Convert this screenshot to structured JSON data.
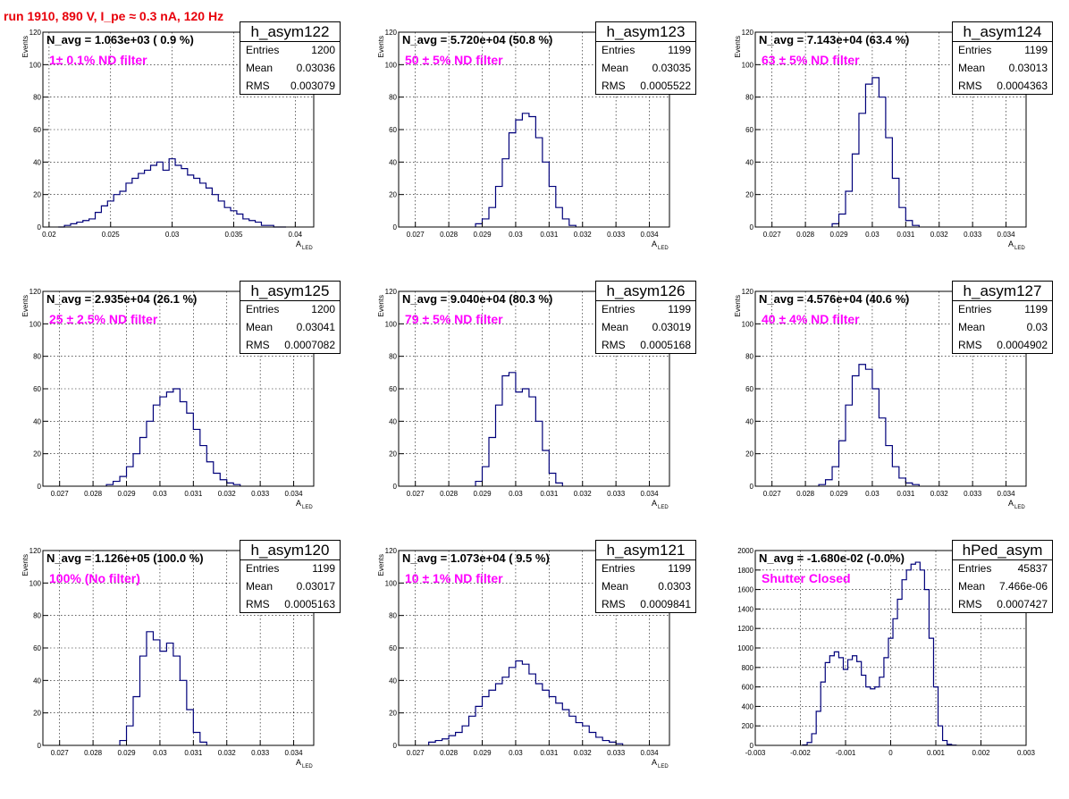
{
  "page_title": "run 1910,   890 V, I_pe ≈ 0.3 nA, 120 Hz",
  "stat_labels": {
    "entries": "Entries",
    "mean": "Mean",
    "rms": "RMS"
  },
  "colors": {
    "histogram": "#00007a",
    "title": "#e8000b",
    "filter_label": "#ff00ff",
    "grid": "#000000"
  },
  "chart_data": [
    {
      "type": "bar",
      "name": "h_asym122",
      "navg": "N_avg = 1.063e+03 ( 0.9 %)",
      "label": "1± 0.1% ND filter",
      "entries": "1200",
      "mean": "0.03036",
      "rms": "0.003079",
      "xlabel": "A",
      "xlabel_sub": "LED",
      "ylabel": "Events",
      "xlim": [
        0.0195,
        0.0415
      ],
      "ylim": [
        0,
        120
      ],
      "xticks": [
        0.02,
        0.025,
        0.03,
        0.035,
        0.04
      ],
      "xtick_labels": [
        "0.02",
        "0.025",
        "0.03",
        "0.035",
        "0.04"
      ],
      "yticks": [
        0,
        20,
        40,
        60,
        80,
        100,
        120
      ],
      "ytick_labels": [
        "0",
        "20",
        "40",
        "60",
        "80",
        "100",
        "120"
      ],
      "bins_x": [
        0.021,
        0.0215,
        0.022,
        0.0225,
        0.023,
        0.0235,
        0.024,
        0.0245,
        0.025,
        0.0255,
        0.026,
        0.0265,
        0.027,
        0.0275,
        0.028,
        0.0285,
        0.029,
        0.0295,
        0.03,
        0.0305,
        0.031,
        0.0315,
        0.032,
        0.0325,
        0.033,
        0.0335,
        0.034,
        0.0345,
        0.035,
        0.0355,
        0.036,
        0.0365,
        0.037,
        0.0375,
        0.038,
        0.0385,
        0.039
      ],
      "values": [
        0,
        1,
        2,
        3,
        4,
        5,
        9,
        13,
        16,
        20,
        22,
        27,
        30,
        33,
        35,
        38,
        40,
        35,
        42,
        38,
        36,
        32,
        30,
        27,
        24,
        20,
        16,
        12,
        10,
        8,
        5,
        4,
        3,
        1,
        1,
        0,
        0
      ]
    },
    {
      "type": "bar",
      "name": "h_asym123",
      "navg": "N_avg = 5.720e+04 (50.8 %)",
      "label": "50 ± 5% ND filter",
      "entries": "1199",
      "mean": "0.03035",
      "rms": "0.0005522",
      "xlabel": "A",
      "xlabel_sub": "LED",
      "ylabel": "Events",
      "xlim": [
        0.0265,
        0.0346
      ],
      "ylim": [
        0,
        120
      ],
      "xticks": [
        0.027,
        0.028,
        0.029,
        0.03,
        0.031,
        0.032,
        0.033,
        0.034
      ],
      "xtick_labels": [
        "0.027",
        "0.028",
        "0.029",
        "0.03",
        "0.031",
        "0.032",
        "0.033",
        "0.034"
      ],
      "yticks": [
        0,
        20,
        40,
        60,
        80,
        100,
        120
      ],
      "ytick_labels": [
        "0",
        "20",
        "40",
        "60",
        "80",
        "100",
        "120"
      ],
      "bins_x": [
        0.0289,
        0.0291,
        0.0293,
        0.0295,
        0.0297,
        0.0299,
        0.0301,
        0.0303,
        0.0305,
        0.0307,
        0.0309,
        0.0311,
        0.0313,
        0.0315,
        0.0317
      ],
      "values": [
        2,
        5,
        12,
        25,
        42,
        58,
        66,
        70,
        68,
        55,
        40,
        25,
        12,
        5,
        1
      ]
    },
    {
      "type": "bar",
      "name": "h_asym124",
      "navg": "N_avg = 7.143e+04 (63.4 %)",
      "label": "63 ± 5% ND filter",
      "entries": "1199",
      "mean": "0.03013",
      "rms": "0.0004363",
      "xlabel": "A",
      "xlabel_sub": "LED",
      "ylabel": "Events",
      "xlim": [
        0.0265,
        0.0346
      ],
      "ylim": [
        0,
        120
      ],
      "xticks": [
        0.027,
        0.028,
        0.029,
        0.03,
        0.031,
        0.032,
        0.033,
        0.034
      ],
      "xtick_labels": [
        "0.027",
        "0.028",
        "0.029",
        "0.03",
        "0.031",
        "0.032",
        "0.033",
        "0.034"
      ],
      "yticks": [
        0,
        20,
        40,
        60,
        80,
        100,
        120
      ],
      "ytick_labels": [
        "0",
        "20",
        "40",
        "60",
        "80",
        "100",
        "120"
      ],
      "bins_x": [
        0.0289,
        0.0291,
        0.0293,
        0.0295,
        0.0297,
        0.0299,
        0.0301,
        0.0303,
        0.0305,
        0.0307,
        0.0309,
        0.0311,
        0.0313
      ],
      "values": [
        2,
        8,
        22,
        45,
        70,
        88,
        92,
        80,
        55,
        30,
        12,
        4,
        1
      ]
    },
    {
      "type": "bar",
      "name": "h_asym125",
      "navg": "N_avg = 2.935e+04 (26.1 %)",
      "label": "25 ± 2.5% ND filter",
      "entries": "1200",
      "mean": "0.03041",
      "rms": "0.0007082",
      "xlabel": "A",
      "xlabel_sub": "LED",
      "ylabel": "Events",
      "xlim": [
        0.0265,
        0.0346
      ],
      "ylim": [
        0,
        120
      ],
      "xticks": [
        0.027,
        0.028,
        0.029,
        0.03,
        0.031,
        0.032,
        0.033,
        0.034
      ],
      "xtick_labels": [
        "0.027",
        "0.028",
        "0.029",
        "0.03",
        "0.031",
        "0.032",
        "0.033",
        "0.034"
      ],
      "yticks": [
        0,
        20,
        40,
        60,
        80,
        100,
        120
      ],
      "ytick_labels": [
        "0",
        "20",
        "40",
        "60",
        "80",
        "100",
        "120"
      ],
      "bins_x": [
        0.0285,
        0.0287,
        0.0289,
        0.0291,
        0.0293,
        0.0295,
        0.0297,
        0.0299,
        0.0301,
        0.0303,
        0.0305,
        0.0307,
        0.0309,
        0.0311,
        0.0313,
        0.0315,
        0.0317,
        0.0319,
        0.0321,
        0.0323
      ],
      "values": [
        1,
        3,
        6,
        12,
        20,
        30,
        40,
        50,
        55,
        58,
        60,
        52,
        45,
        35,
        25,
        15,
        8,
        4,
        2,
        1
      ]
    },
    {
      "type": "bar",
      "name": "h_asym126",
      "navg": "N_avg = 9.040e+04 (80.3 %)",
      "label": "79 ± 5% ND filter",
      "entries": "1199",
      "mean": "0.03019",
      "rms": "0.0005168",
      "xlabel": "A",
      "xlabel_sub": "LED",
      "ylabel": "Events",
      "xlim": [
        0.0265,
        0.0346
      ],
      "ylim": [
        0,
        120
      ],
      "xticks": [
        0.027,
        0.028,
        0.029,
        0.03,
        0.031,
        0.032,
        0.033,
        0.034
      ],
      "xtick_labels": [
        "0.027",
        "0.028",
        "0.029",
        "0.03",
        "0.031",
        "0.032",
        "0.033",
        "0.034"
      ],
      "yticks": [
        0,
        20,
        40,
        60,
        80,
        100,
        120
      ],
      "ytick_labels": [
        "0",
        "20",
        "40",
        "60",
        "80",
        "100",
        "120"
      ],
      "bins_x": [
        0.0289,
        0.0291,
        0.0293,
        0.0295,
        0.0297,
        0.0299,
        0.0301,
        0.0303,
        0.0305,
        0.0307,
        0.0309,
        0.0311,
        0.0313
      ],
      "values": [
        3,
        12,
        30,
        50,
        68,
        70,
        58,
        60,
        55,
        40,
        22,
        8,
        2
      ]
    },
    {
      "type": "bar",
      "name": "h_asym127",
      "navg": "N_avg = 4.576e+04 (40.6 %)",
      "label": "40 ± 4% ND filter",
      "entries": "1199",
      "mean": "0.03",
      "rms": "0.0004902",
      "xlabel": "A",
      "xlabel_sub": "LED",
      "ylabel": "Events",
      "xlim": [
        0.0265,
        0.0346
      ],
      "ylim": [
        0,
        120
      ],
      "xticks": [
        0.027,
        0.028,
        0.029,
        0.03,
        0.031,
        0.032,
        0.033,
        0.034
      ],
      "xtick_labels": [
        "0.027",
        "0.028",
        "0.029",
        "0.03",
        "0.031",
        "0.032",
        "0.033",
        "0.034"
      ],
      "yticks": [
        0,
        20,
        40,
        60,
        80,
        100,
        120
      ],
      "ytick_labels": [
        "0",
        "20",
        "40",
        "60",
        "80",
        "100",
        "120"
      ],
      "bins_x": [
        0.0285,
        0.0287,
        0.0289,
        0.0291,
        0.0293,
        0.0295,
        0.0297,
        0.0299,
        0.0301,
        0.0303,
        0.0305,
        0.0307,
        0.0309,
        0.0311,
        0.0313
      ],
      "values": [
        1,
        4,
        12,
        28,
        50,
        68,
        75,
        72,
        60,
        42,
        25,
        12,
        5,
        2,
        1
      ]
    },
    {
      "type": "bar",
      "name": "h_asym120",
      "navg": "N_avg = 1.126e+05 (100.0 %)",
      "label": "100% (No filter)",
      "entries": "1199",
      "mean": "0.03017",
      "rms": "0.0005163",
      "xlabel": "A",
      "xlabel_sub": "LED",
      "ylabel": "Events",
      "xlim": [
        0.0265,
        0.0346
      ],
      "ylim": [
        0,
        120
      ],
      "xticks": [
        0.027,
        0.028,
        0.029,
        0.03,
        0.031,
        0.032,
        0.033,
        0.034
      ],
      "xtick_labels": [
        "0.027",
        "0.028",
        "0.029",
        "0.03",
        "0.031",
        "0.032",
        "0.033",
        "0.034"
      ],
      "yticks": [
        0,
        20,
        40,
        60,
        80,
        100,
        120
      ],
      "ytick_labels": [
        "0",
        "20",
        "40",
        "60",
        "80",
        "100",
        "120"
      ],
      "bins_x": [
        0.0289,
        0.0291,
        0.0293,
        0.0295,
        0.0297,
        0.0299,
        0.0301,
        0.0303,
        0.0305,
        0.0307,
        0.0309,
        0.0311,
        0.0313
      ],
      "values": [
        3,
        12,
        30,
        55,
        70,
        65,
        58,
        63,
        55,
        40,
        22,
        8,
        2
      ]
    },
    {
      "type": "bar",
      "name": "h_asym121",
      "navg": "N_avg = 1.073e+04 ( 9.5 %)",
      "label": "10 ± 1% ND filter",
      "entries": "1199",
      "mean": "0.0303",
      "rms": "0.0009841",
      "xlabel": "A",
      "xlabel_sub": "LED",
      "ylabel": "Events",
      "xlim": [
        0.0265,
        0.0346
      ],
      "ylim": [
        0,
        120
      ],
      "xticks": [
        0.027,
        0.028,
        0.029,
        0.03,
        0.031,
        0.032,
        0.033,
        0.034
      ],
      "xtick_labels": [
        "0.027",
        "0.028",
        "0.029",
        "0.03",
        "0.031",
        "0.032",
        "0.033",
        "0.034"
      ],
      "yticks": [
        0,
        20,
        40,
        60,
        80,
        100,
        120
      ],
      "ytick_labels": [
        "0",
        "20",
        "40",
        "60",
        "80",
        "100",
        "120"
      ],
      "bins_x": [
        0.0275,
        0.0277,
        0.0279,
        0.0281,
        0.0283,
        0.0285,
        0.0287,
        0.0289,
        0.0291,
        0.0293,
        0.0295,
        0.0297,
        0.0299,
        0.0301,
        0.0303,
        0.0305,
        0.0307,
        0.0309,
        0.0311,
        0.0313,
        0.0315,
        0.0317,
        0.0319,
        0.0321,
        0.0323,
        0.0325,
        0.0327,
        0.0329,
        0.0331
      ],
      "values": [
        2,
        3,
        4,
        6,
        8,
        12,
        18,
        24,
        30,
        34,
        38,
        42,
        48,
        52,
        50,
        44,
        38,
        34,
        30,
        26,
        22,
        18,
        14,
        12,
        8,
        5,
        3,
        2,
        1
      ]
    },
    {
      "type": "bar",
      "name": "hPed_asym",
      "navg": "N_avg = -1.680e-02 (-0.0%)",
      "label": "Shutter Closed",
      "entries": "45837",
      "mean": "7.466e-06",
      "rms": "0.0007427",
      "xlabel": "",
      "xlabel_sub": "",
      "ylabel": "",
      "xlim": [
        -0.003,
        0.003
      ],
      "ylim": [
        0,
        2000
      ],
      "xticks": [
        -0.003,
        -0.002,
        -0.001,
        0,
        0.001,
        0.002,
        0.003
      ],
      "xtick_labels": [
        "-0.003",
        "-0.002",
        "-0.001",
        "0",
        "0.001",
        "0.002",
        "0.003"
      ],
      "yticks": [
        0,
        200,
        400,
        600,
        800,
        1000,
        1200,
        1400,
        1600,
        1800,
        2000
      ],
      "ytick_labels": [
        "0",
        "200",
        "400",
        "600",
        "800",
        "1000",
        "1200",
        "1400",
        "1600",
        "1800",
        "2000"
      ],
      "bins_x": [
        -0.0019,
        -0.0018,
        -0.0017,
        -0.0016,
        -0.0015,
        -0.0014,
        -0.0013,
        -0.0012,
        -0.0011,
        -0.001,
        -0.0009,
        -0.0008,
        -0.0007,
        -0.0006,
        -0.0005,
        -0.0004,
        -0.0003,
        -0.0002,
        -0.0001,
        0.0,
        0.0001,
        0.0002,
        0.0003,
        0.0004,
        0.0005,
        0.0006,
        0.0007,
        0.0008,
        0.0009,
        0.001,
        0.0011,
        0.0012,
        0.0013,
        0.0014
      ],
      "values": [
        5,
        30,
        120,
        350,
        650,
        850,
        920,
        960,
        900,
        780,
        880,
        920,
        860,
        720,
        600,
        580,
        600,
        700,
        900,
        1100,
        1300,
        1500,
        1700,
        1800,
        1860,
        1880,
        1800,
        1600,
        1100,
        600,
        200,
        50,
        10,
        2
      ]
    }
  ]
}
